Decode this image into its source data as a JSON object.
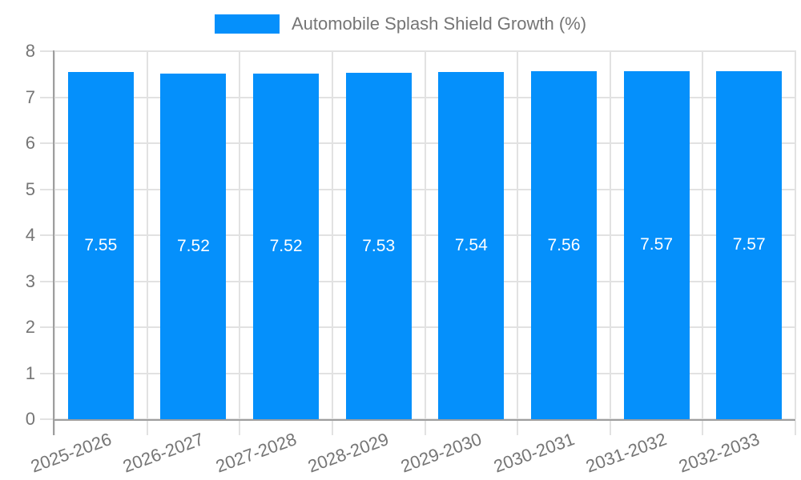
{
  "colors": {
    "bar": "#0590fb",
    "axis_text": "#757575",
    "axis_line": "#9e9e9e",
    "gridline": "#e2e2e2",
    "value_label": "#ffffff",
    "background": "#ffffff"
  },
  "chart_data": {
    "type": "bar",
    "title": "Automobile Splash Shield Growth (%)",
    "categories": [
      "2025-2026",
      "2026-2027",
      "2027-2028",
      "2028-2029",
      "2029-2030",
      "2030-2031",
      "2031-2032",
      "2032-2033"
    ],
    "values": [
      7.55,
      7.52,
      7.52,
      7.53,
      7.54,
      7.56,
      7.57,
      7.57
    ],
    "value_labels": [
      "7.55",
      "7.52",
      "7.52",
      "7.53",
      "7.54",
      "7.56",
      "7.57",
      "7.57"
    ],
    "xlabel": "",
    "ylabel": "",
    "ylim": [
      0,
      8
    ],
    "yticks": [
      0,
      1,
      2,
      3,
      4,
      5,
      6,
      7,
      8
    ],
    "ytick_labels": [
      "0",
      "1",
      "2",
      "3",
      "4",
      "5",
      "6",
      "7",
      "8"
    ],
    "grid": true,
    "legend_position": "top",
    "value_label_position": "inside-center",
    "x_label_rotation_deg": -20
  }
}
